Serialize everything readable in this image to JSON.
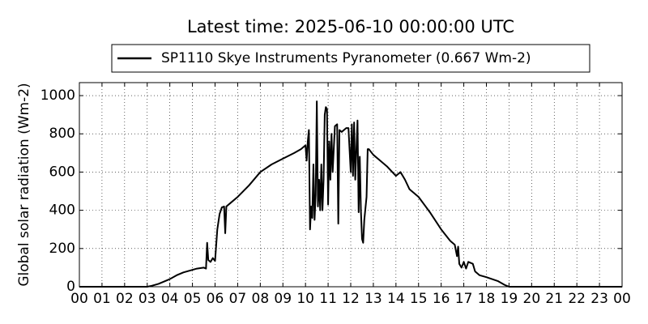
{
  "chart_data": {
    "type": "line",
    "title": "Latest time: 2025-06-10 00:00:00 UTC",
    "y_label": "Global solar radiation (Wm-2)",
    "x": [
      0,
      3,
      3.2,
      3.5,
      3.8,
      4,
      4.3,
      4.6,
      4.9,
      5.2,
      5.5,
      5.6,
      5.65,
      5.7,
      5.8,
      5.9,
      6,
      6.1,
      6.2,
      6.3,
      6.4,
      6.45,
      6.5,
      6.7,
      7,
      7.5,
      8,
      8.5,
      9,
      9.5,
      9.8,
      10,
      10.05,
      10.1,
      10.15,
      10.2,
      10.25,
      10.3,
      10.35,
      10.4,
      10.45,
      10.5,
      10.55,
      10.6,
      10.65,
      10.7,
      10.75,
      10.8,
      10.85,
      10.9,
      10.95,
      11,
      11.05,
      11.1,
      11.15,
      11.2,
      11.3,
      11.4,
      11.45,
      11.5,
      11.6,
      11.8,
      11.9,
      12,
      12.05,
      12.1,
      12.15,
      12.2,
      12.3,
      12.35,
      12.4,
      12.45,
      12.5,
      12.55,
      12.6,
      12.7,
      12.75,
      12.8,
      13,
      13.3,
      13.6,
      14,
      14.2,
      14.4,
      14.6,
      15,
      15.5,
      16,
      16.4,
      16.6,
      16.7,
      16.75,
      16.8,
      16.9,
      17,
      17.1,
      17.2,
      17.4,
      17.5,
      17.7,
      18,
      18.5,
      18.8,
      19,
      24
    ],
    "series": [
      {
        "name": "SP1110 Skye Instruments Pyranometer (0.667 Wm-2)",
        "color": "#000000",
        "values": [
          0,
          0,
          5,
          15,
          30,
          40,
          60,
          75,
          85,
          95,
          100,
          95,
          230,
          140,
          130,
          150,
          135,
          300,
          380,
          415,
          420,
          280,
          420,
          440,
          470,
          530,
          600,
          640,
          670,
          700,
          720,
          740,
          660,
          760,
          820,
          300,
          420,
          360,
          640,
          350,
          480,
          970,
          420,
          560,
          400,
          640,
          400,
          560,
          900,
          940,
          930,
          430,
          760,
          560,
          800,
          600,
          840,
          850,
          330,
          820,
          810,
          830,
          830,
          600,
          850,
          580,
          860,
          560,
          870,
          390,
          680,
          400,
          250,
          230,
          350,
          470,
          720,
          720,
          690,
          660,
          630,
          580,
          600,
          560,
          510,
          470,
          390,
          300,
          240,
          220,
          160,
          210,
          120,
          100,
          130,
          95,
          130,
          120,
          80,
          60,
          50,
          30,
          10,
          0,
          0
        ]
      }
    ],
    "xlim": [
      0,
      24
    ],
    "xticks": [
      {
        "value": 0,
        "label": "00"
      },
      {
        "value": 1,
        "label": "01"
      },
      {
        "value": 2,
        "label": "02"
      },
      {
        "value": 3,
        "label": "03"
      },
      {
        "value": 4,
        "label": "04"
      },
      {
        "value": 5,
        "label": "05"
      },
      {
        "value": 6,
        "label": "06"
      },
      {
        "value": 7,
        "label": "07"
      },
      {
        "value": 8,
        "label": "08"
      },
      {
        "value": 9,
        "label": "09"
      },
      {
        "value": 10,
        "label": "10"
      },
      {
        "value": 11,
        "label": "11"
      },
      {
        "value": 12,
        "label": "12"
      },
      {
        "value": 13,
        "label": "13"
      },
      {
        "value": 14,
        "label": "14"
      },
      {
        "value": 15,
        "label": "15"
      },
      {
        "value": 16,
        "label": "16"
      },
      {
        "value": 17,
        "label": "17"
      },
      {
        "value": 18,
        "label": "18"
      },
      {
        "value": 19,
        "label": "19"
      },
      {
        "value": 20,
        "label": "20"
      },
      {
        "value": 21,
        "label": "21"
      },
      {
        "value": 22,
        "label": "22"
      },
      {
        "value": 23,
        "label": "23"
      },
      {
        "value": 24,
        "label": "00"
      }
    ],
    "ylim": [
      0,
      1068
    ],
    "yticks": [
      0,
      200,
      400,
      600,
      800,
      1000
    ],
    "grid": true
  }
}
